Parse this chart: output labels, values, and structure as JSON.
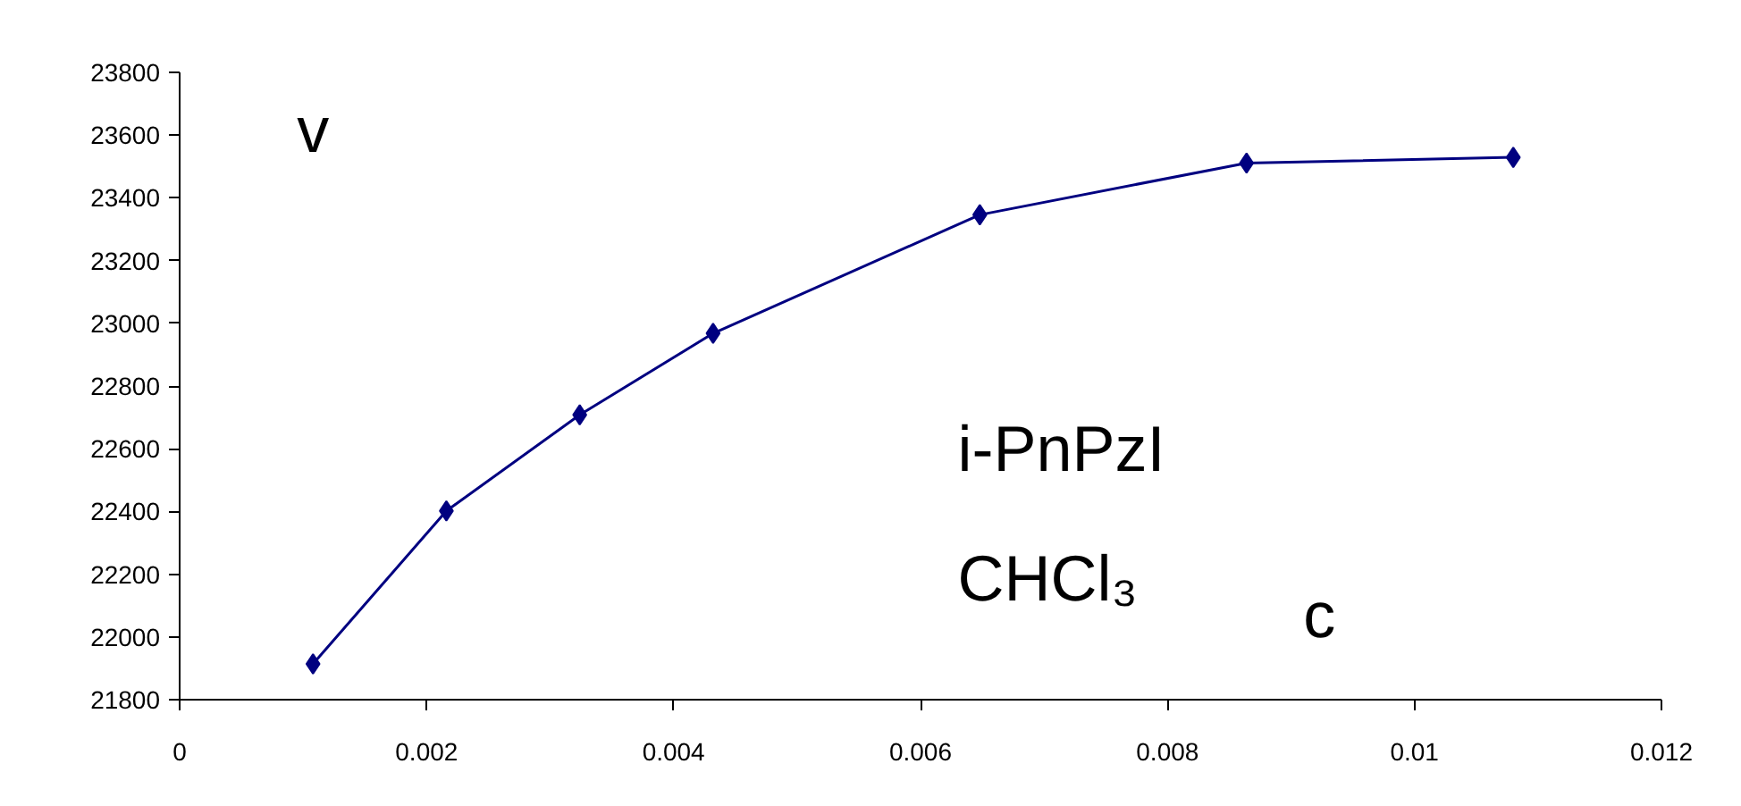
{
  "chart_data": {
    "type": "line",
    "x": [
      0.00108,
      0.00216,
      0.00324,
      0.00432,
      0.00648,
      0.00864,
      0.0108
    ],
    "series": [
      {
        "color": "#000080",
        "values": [
          21914,
          22402,
          22708,
          22968,
          23346,
          23511,
          23529
        ]
      }
    ],
    "xlim": [
      0,
      0.012
    ],
    "xticks": [
      0,
      0.002,
      0.004,
      0.006,
      0.008,
      0.01,
      0.012
    ],
    "ylim": [
      21800,
      23800
    ],
    "yticks": [
      21800,
      22000,
      22200,
      22400,
      22600,
      22800,
      23000,
      23200,
      23400,
      23600,
      23800
    ],
    "annotations": [
      "v",
      "i-PnPzI",
      "CHCl₃",
      "c"
    ],
    "grid": false,
    "marker": "diamond",
    "line_style": "solid"
  }
}
